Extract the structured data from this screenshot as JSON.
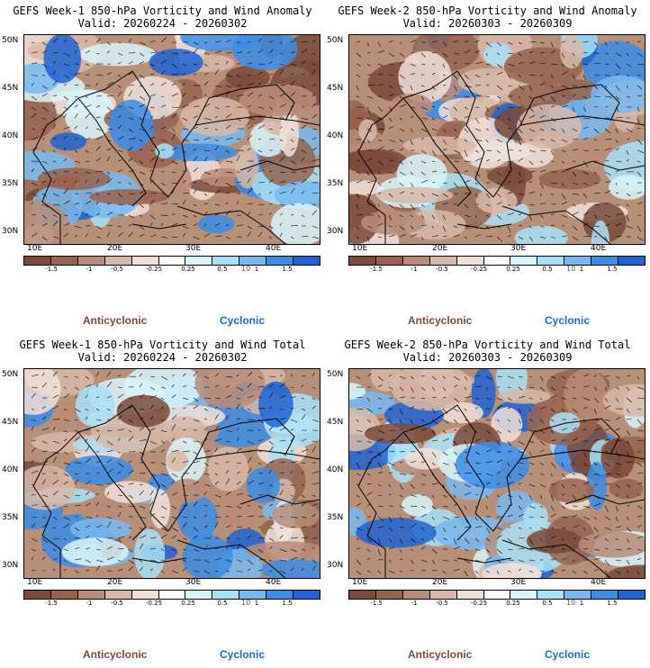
{
  "panels": [
    {
      "title_line1": "GEFS Week-1 850-hPa Vorticity and Wind Anomaly",
      "title_line2": "Valid: 20260224 - 20260302",
      "seed": 11,
      "blue_bias": 0.45
    },
    {
      "title_line1": "GEFS Week-2 850-hPa Vorticity and Wind Anomaly",
      "title_line2": "Valid: 20260303 - 20260309",
      "seed": 23,
      "blue_bias": 0.35
    },
    {
      "title_line1": "GEFS Week-1 850-hPa Vorticity and Wind Total",
      "title_line2": "Valid: 20260224 - 20260302",
      "seed": 37,
      "blue_bias": 0.5
    },
    {
      "title_line1": "GEFS Week-2 850-hPa Vorticity and Wind Total",
      "title_line2": "Valid: 20260303 - 20260309",
      "seed": 53,
      "blue_bias": 0.5
    }
  ],
  "y_labels": [
    "50N",
    "45N",
    "40N",
    "35N",
    "30N"
  ],
  "x_labels": [
    "10E",
    "20E",
    "30E",
    "40E"
  ],
  "colorbar": {
    "ticks": [
      "-1.5",
      "-1",
      "-0.5",
      "-0.25",
      "0.25",
      "0.5",
      "1",
      "1.5"
    ],
    "extra_text": "10",
    "colors": [
      "#7a4a3a",
      "#96644e",
      "#b88c78",
      "#d8b8a8",
      "#f0e0d8",
      "#ffffff",
      "#d8f4fc",
      "#a8e0f8",
      "#78b8f0",
      "#3c8ce6",
      "#1e64d2"
    ]
  },
  "legend": {
    "anticyclonic": "Anticyclonic",
    "cyclonic": "Cyclonic"
  }
}
